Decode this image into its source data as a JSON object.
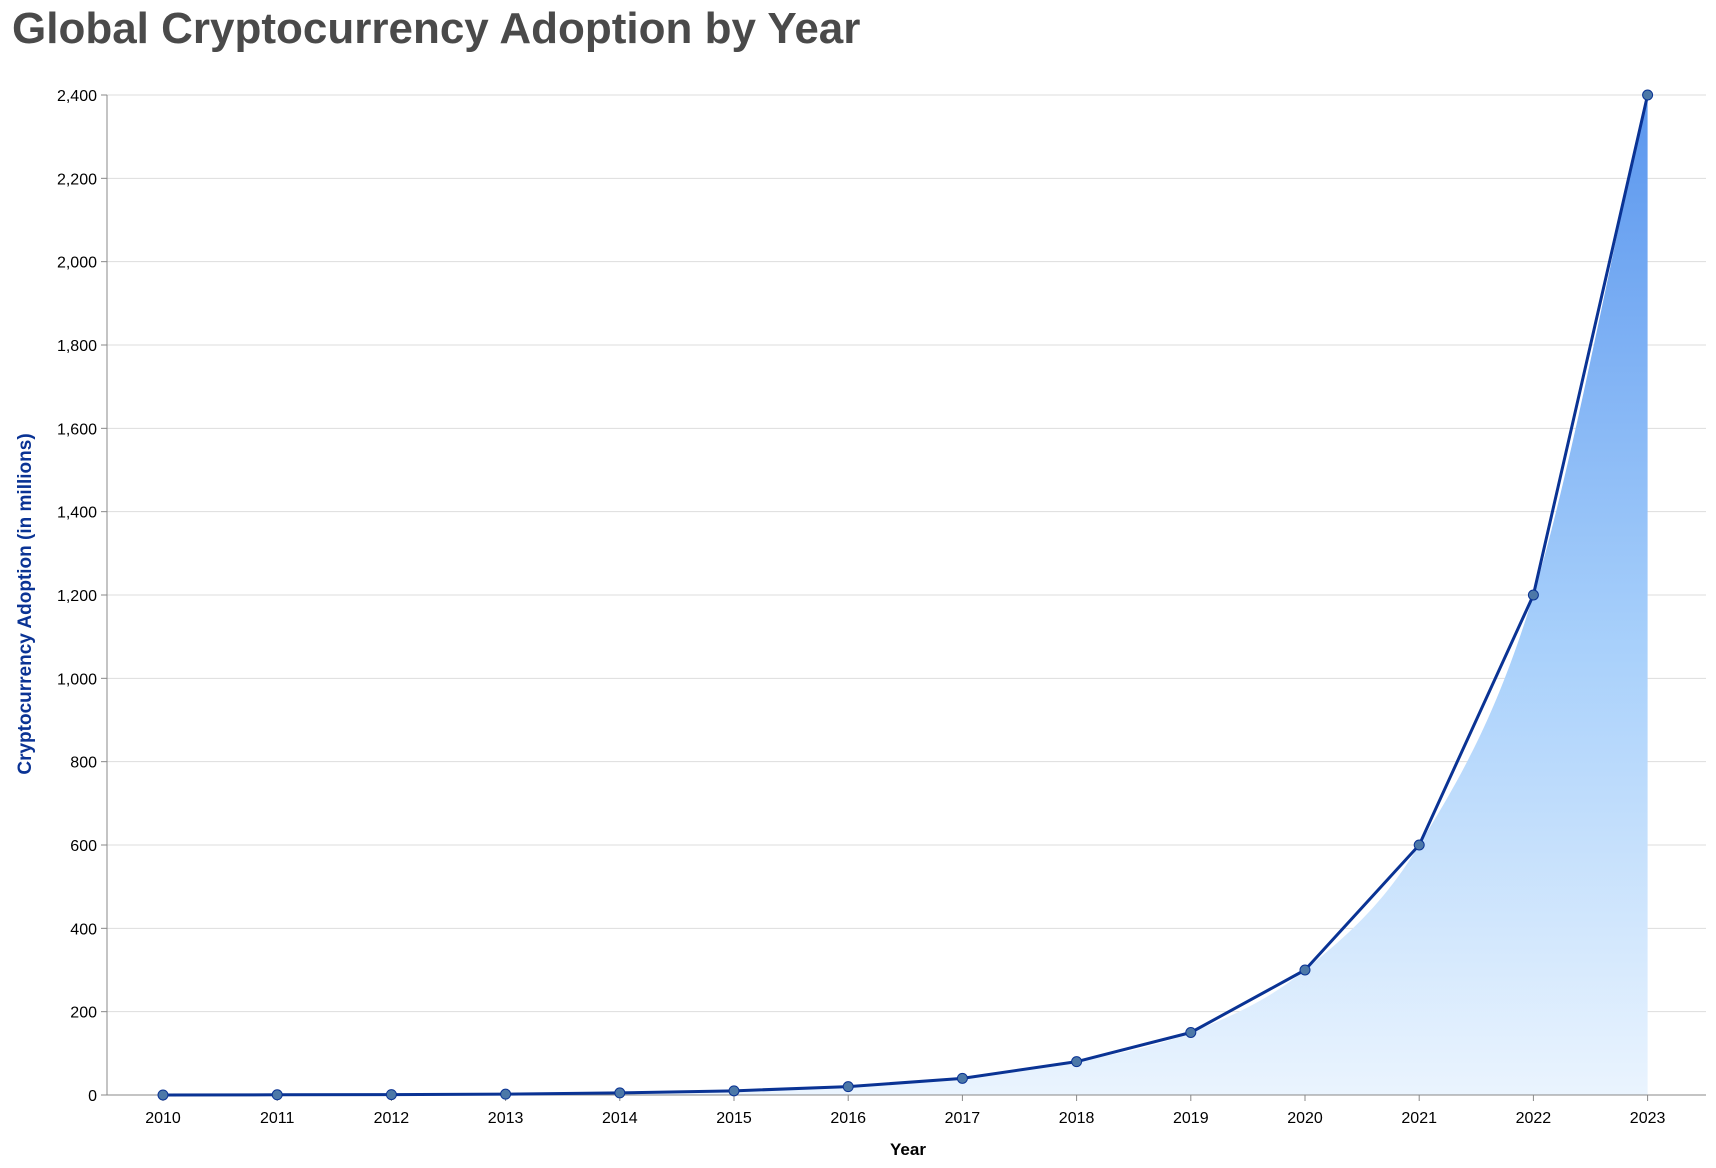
{
  "chart_data": {
    "type": "area",
    "title": "Global Cryptocurrency Adoption by Year",
    "xlabel": "Year",
    "ylabel": "Cryptocurrency Adoption (in millions)",
    "categories": [
      "2010",
      "2011",
      "2012",
      "2013",
      "2014",
      "2015",
      "2016",
      "2017",
      "2018",
      "2019",
      "2020",
      "2021",
      "2022",
      "2023"
    ],
    "values": [
      0.1,
      0.5,
      1,
      2,
      5,
      10,
      20,
      40,
      80,
      150,
      300,
      600,
      1200,
      2400
    ],
    "ylim": [
      0,
      2400
    ],
    "yticks": [
      0,
      200,
      400,
      600,
      800,
      1000,
      1200,
      1400,
      1600,
      1800,
      2000,
      2200,
      2400
    ],
    "ytick_labels": [
      "0",
      "200",
      "400",
      "600",
      "800",
      "1,000",
      "1,200",
      "1,400",
      "1,600",
      "1,800",
      "2,000",
      "2,200",
      "2,400"
    ],
    "grid": true,
    "area_interpolation": "smooth",
    "colors": {
      "line": "#0a3394",
      "point": "#4c78a8",
      "area_top": "#5a96ee",
      "area_mid": "#a8d0fb",
      "area_bottom": "#eaf4fe",
      "grid": "#dddddd",
      "axis": "#888888",
      "title": "#4a4a4a",
      "ylabel": "#0a3394"
    }
  }
}
